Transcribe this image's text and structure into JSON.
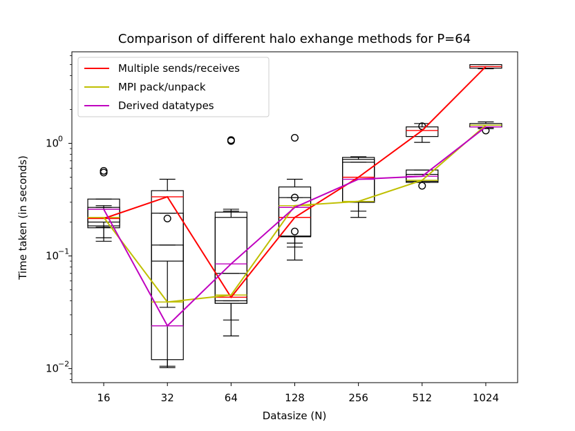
{
  "chart_data": {
    "type": "box",
    "title": "Comparison of different halo exhange methods for P=64",
    "xlabel": "Datasize (N)",
    "ylabel": "Time taken (in seconds)",
    "yscale": "log",
    "ylim": [
      0.0075,
      6.5
    ],
    "yticks": [
      {
        "value": 0.01,
        "base": "10",
        "exp": "−2"
      },
      {
        "value": 0.1,
        "base": "10",
        "exp": "−1"
      },
      {
        "value": 1,
        "base": "10",
        "exp": "0"
      }
    ],
    "categories": [
      "16",
      "32",
      "64",
      "128",
      "256",
      "512",
      "1024"
    ],
    "grid": false,
    "legend_position": "top-left",
    "series": [
      {
        "name": "Multiple sends/receives",
        "color": "#ff0000",
        "values": [
          0.215,
          0.335,
          0.043,
          0.22,
          0.5,
          1.3,
          4.8
        ],
        "boxes": [
          {
            "whislo": 0.135,
            "q1": 0.178,
            "med": 0.215,
            "q3": 0.27,
            "whishi": 0.27,
            "fliers": [
              0.55
            ]
          },
          {
            "whislo": 0.035,
            "q1": 0.09,
            "med": 0.335,
            "q3": 0.38,
            "whishi": 0.48,
            "fliers": []
          },
          {
            "whislo": 0.027,
            "q1": 0.038,
            "med": 0.043,
            "q3": 0.07,
            "whishi": 0.07,
            "fliers": [
              1.05
            ]
          },
          {
            "whislo": 0.092,
            "q1": 0.148,
            "med": 0.22,
            "q3": 0.41,
            "whishi": 0.48,
            "fliers": [
              1.12
            ]
          },
          {
            "whislo": 0.25,
            "q1": 0.3,
            "med": 0.5,
            "q3": 0.75,
            "whishi": 0.76,
            "fliers": []
          },
          {
            "whislo": 1.02,
            "q1": 1.15,
            "med": 1.3,
            "q3": 1.4,
            "whishi": 1.5,
            "fliers": [
              1.42
            ]
          },
          {
            "whislo": 4.6,
            "q1": 4.65,
            "med": 4.8,
            "q3": 5.0,
            "whishi": 5.0,
            "fliers": []
          }
        ]
      },
      {
        "name": "MPI pack/unpack",
        "color": "#bfbf00",
        "values": [
          0.22,
          0.039,
          0.045,
          0.28,
          0.305,
          0.47,
          1.45
        ],
        "boxes": [
          {
            "whislo": 0.145,
            "q1": 0.185,
            "med": 0.22,
            "q3": 0.32,
            "whishi": 0.32,
            "fliers": [
              0.57
            ]
          },
          {
            "whislo": 0.0105,
            "q1": 0.012,
            "med": 0.039,
            "q3": 0.125,
            "whishi": 0.125,
            "fliers": []
          },
          {
            "whislo": 0.0195,
            "q1": 0.038,
            "med": 0.045,
            "q3": 0.245,
            "whishi": 0.26,
            "fliers": [
              1.07
            ]
          },
          {
            "whislo": 0.12,
            "q1": 0.15,
            "med": 0.28,
            "q3": 0.33,
            "whishi": 0.33,
            "fliers": [
              0.33
            ]
          },
          {
            "whislo": 0.22,
            "q1": 0.3,
            "med": 0.305,
            "q3": 0.72,
            "whishi": 0.75,
            "fliers": []
          },
          {
            "whislo": 0.45,
            "q1": 0.45,
            "med": 0.47,
            "q3": 0.53,
            "whishi": 0.53,
            "fliers": [
              0.42
            ]
          },
          {
            "whislo": 1.35,
            "q1": 1.4,
            "med": 1.45,
            "q3": 1.5,
            "whishi": 1.55,
            "fliers": [
              1.3
            ]
          }
        ]
      },
      {
        "name": "Derived datatypes",
        "color": "#bf00bf",
        "values": [
          0.26,
          0.024,
          0.085,
          0.27,
          0.48,
          0.51,
          1.4
        ],
        "boxes": [
          {
            "whislo": 0.18,
            "q1": 0.2,
            "med": 0.26,
            "q3": 0.26,
            "whishi": 0.28,
            "fliers": []
          },
          {
            "whislo": 0.0102,
            "q1": 0.024,
            "med": 0.024,
            "q3": 0.24,
            "whishi": 0.24,
            "fliers": [
              0.215
            ]
          },
          {
            "whislo": 0.04,
            "q1": 0.04,
            "med": 0.085,
            "q3": 0.22,
            "whishi": 0.25,
            "fliers": []
          },
          {
            "whislo": 0.13,
            "q1": 0.15,
            "med": 0.27,
            "q3": 0.27,
            "whishi": 0.27,
            "fliers": [
              0.165
            ]
          },
          {
            "whislo": 0.3,
            "q1": 0.3,
            "med": 0.48,
            "q3": 0.68,
            "whishi": 0.68,
            "fliers": []
          },
          {
            "whislo": 0.45,
            "q1": 0.46,
            "med": 0.51,
            "q3": 0.58,
            "whishi": 0.58,
            "fliers": []
          },
          {
            "whislo": 1.38,
            "q1": 1.4,
            "med": 1.4,
            "q3": 1.45,
            "whishi": 1.45,
            "fliers": []
          }
        ]
      }
    ]
  }
}
